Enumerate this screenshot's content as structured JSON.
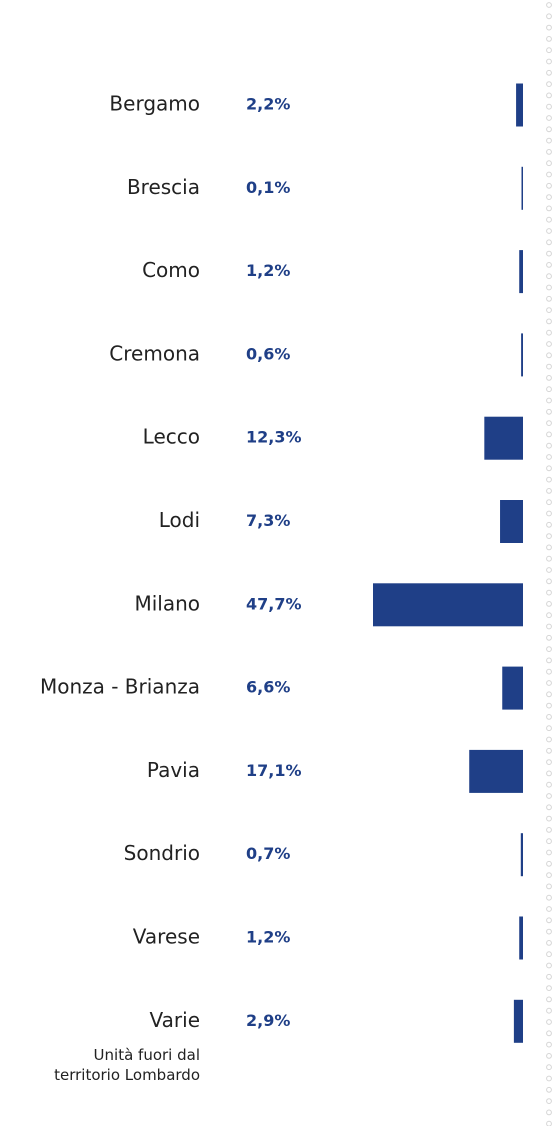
{
  "chart_data": {
    "type": "hbar",
    "categories": [
      "Bergamo",
      "Brescia",
      "Como",
      "Cremona",
      "Lecco",
      "Lodi",
      "Milano",
      "Monza - Brianza",
      "Pavia",
      "Sondrio",
      "Varese",
      "Varie"
    ],
    "values": [
      2.2,
      0.1,
      1.2,
      0.6,
      12.3,
      7.3,
      47.7,
      6.6,
      17.1,
      0.7,
      1.2,
      2.9
    ],
    "value_labels": [
      "2,2%",
      "0,1%",
      "1,2%",
      "0,6%",
      "12,3%",
      "7,3%",
      "47,7%",
      "6,6%",
      "17,1%",
      "0,7%",
      "1,2%",
      "2,9%"
    ],
    "annotation": [
      "Unità fuori dal",
      "territorio Lombardo"
    ],
    "color": "#1f3f87"
  }
}
